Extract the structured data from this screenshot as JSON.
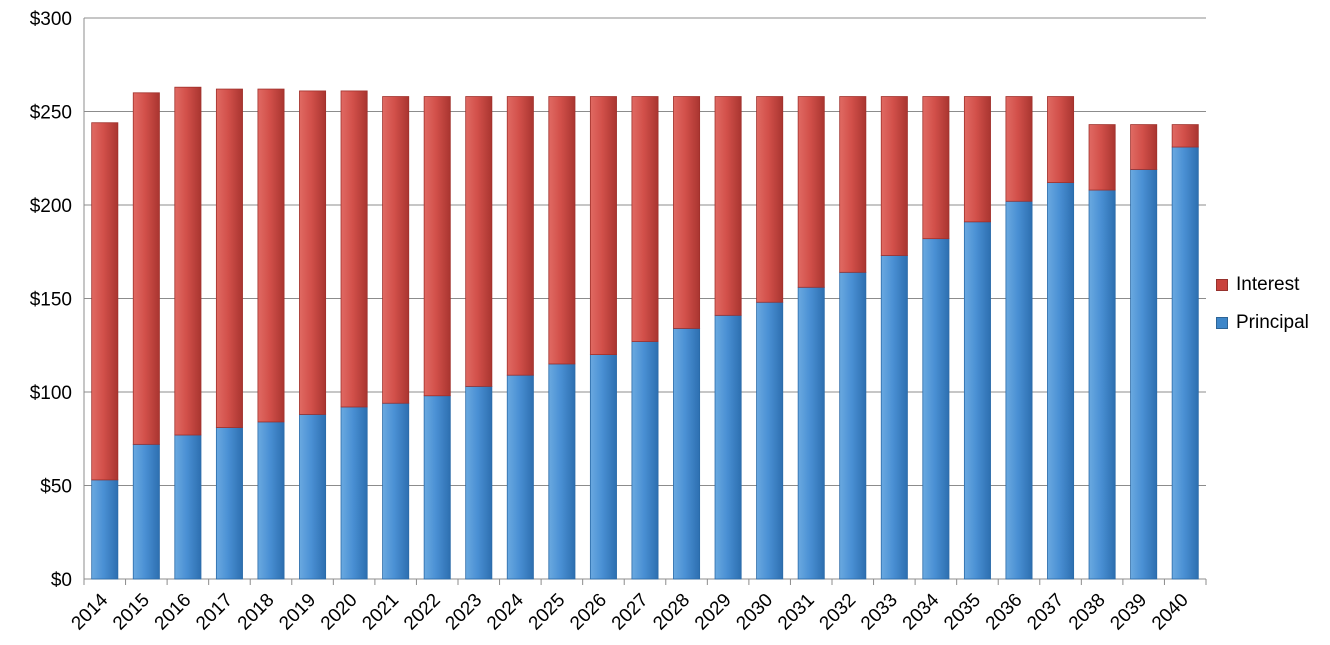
{
  "chart_data": {
    "type": "bar",
    "stacked": true,
    "categories": [
      "2014",
      "2015",
      "2016",
      "2017",
      "2018",
      "2019",
      "2020",
      "2021",
      "2022",
      "2023",
      "2024",
      "2025",
      "2026",
      "2027",
      "2028",
      "2029",
      "2030",
      "2031",
      "2032",
      "2033",
      "2034",
      "2035",
      "2036",
      "2037",
      "2038",
      "2039",
      "2040"
    ],
    "series": [
      {
        "name": "Principal",
        "color": "#3d86c9",
        "values": [
          53,
          72,
          77,
          81,
          84,
          88,
          92,
          94,
          98,
          103,
          109,
          115,
          120,
          127,
          134,
          141,
          148,
          156,
          164,
          173,
          182,
          191,
          202,
          212,
          208,
          219,
          231
        ]
      },
      {
        "name": "Interest",
        "color": "#c9423d",
        "values": [
          191,
          188,
          186,
          181,
          178,
          173,
          169,
          164,
          160,
          155,
          149,
          143,
          138,
          131,
          124,
          117,
          110,
          102,
          94,
          85,
          76,
          67,
          56,
          46,
          35,
          24,
          12
        ]
      }
    ],
    "y_ticks": [
      "$0",
      "$50",
      "$100",
      "$150",
      "$200",
      "$250",
      "$300"
    ],
    "ylim": [
      0,
      300
    ],
    "grid": true,
    "legend_position": "right",
    "title": "",
    "xlabel": "",
    "ylabel": ""
  }
}
